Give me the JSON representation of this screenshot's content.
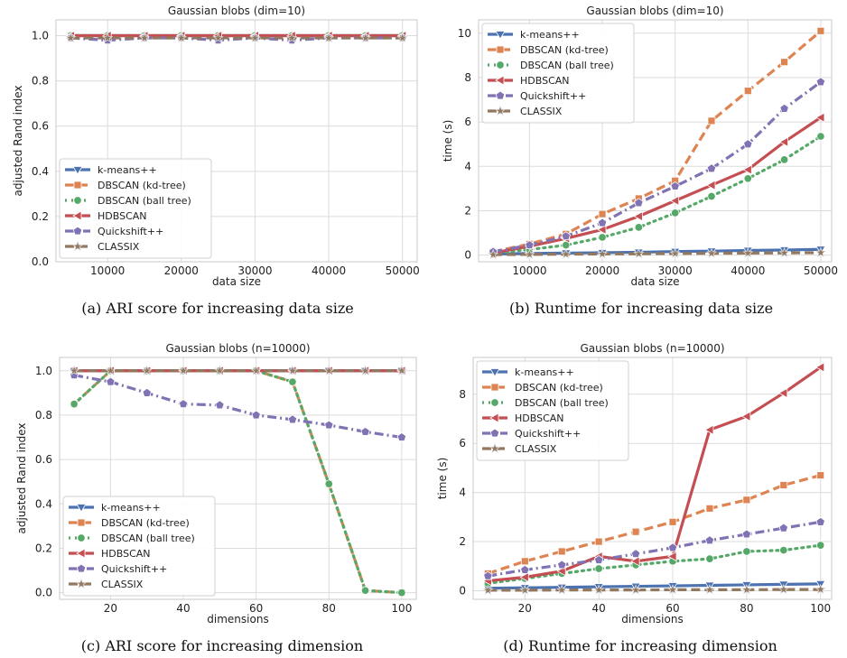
{
  "series_styles": [
    {
      "name": "k-means++",
      "color": "#4c72b0",
      "marker": "triangle-down",
      "dash": "solid"
    },
    {
      "name": "DBSCAN (kd-tree)",
      "color": "#dd8452",
      "marker": "square",
      "dash": "dashed"
    },
    {
      "name": "DBSCAN (ball tree)",
      "color": "#55a868",
      "marker": "circle",
      "dash": "dotted"
    },
    {
      "name": "HDBSCAN",
      "color": "#c44e52",
      "marker": "triangle-left",
      "dash": "solid"
    },
    {
      "name": "Quickshift++",
      "color": "#8172b3",
      "marker": "pentagon",
      "dash": "dashdot"
    },
    {
      "name": "CLASSIX",
      "color": "#937860",
      "marker": "star",
      "dash": "dashed"
    }
  ],
  "captions": [
    "(a)  ARI score for increasing data size",
    "(b)  Runtime for increasing data size",
    "(c)  ARI score for increasing dimension",
    "(d)  Runtime for increasing dimension"
  ],
  "chart_data": [
    {
      "type": "line",
      "title": "Gaussian blobs (dim=10)",
      "xlabel": "data size",
      "ylabel": "adjusted Rand index",
      "xlim": [
        3000,
        52000
      ],
      "ylim": [
        0,
        1.07
      ],
      "xticks": [
        10000,
        20000,
        30000,
        40000,
        50000
      ],
      "yticks": [
        0.0,
        0.2,
        0.4,
        0.6,
        0.8,
        1.0
      ],
      "ytick_labels": [
        "0.0",
        "0.2",
        "0.4",
        "0.6",
        "0.8",
        "1.0"
      ],
      "legend": "lower-left",
      "grid": true,
      "x": [
        5000,
        10000,
        15000,
        20000,
        25000,
        30000,
        35000,
        40000,
        45000,
        50000
      ],
      "series": [
        {
          "name": "k-means++",
          "values": [
            1.0,
            1.0,
            1.0,
            1.0,
            1.0,
            1.0,
            1.0,
            1.0,
            1.0,
            1.0
          ]
        },
        {
          "name": "DBSCAN (kd-tree)",
          "values": [
            1.0,
            1.0,
            1.0,
            1.0,
            1.0,
            1.0,
            1.0,
            1.0,
            1.0,
            1.0
          ]
        },
        {
          "name": "DBSCAN (ball tree)",
          "values": [
            1.0,
            1.0,
            1.0,
            1.0,
            1.0,
            1.0,
            1.0,
            1.0,
            1.0,
            1.0
          ]
        },
        {
          "name": "HDBSCAN",
          "values": [
            1.0,
            1.0,
            1.0,
            1.0,
            1.0,
            1.0,
            1.0,
            1.0,
            1.0,
            1.0
          ]
        },
        {
          "name": "Quickshift++",
          "values": [
            0.99,
            0.98,
            0.99,
            0.99,
            0.98,
            0.99,
            0.98,
            0.99,
            0.99,
            0.99
          ]
        },
        {
          "name": "CLASSIX",
          "values": [
            0.99,
            0.99,
            0.99,
            0.99,
            0.99,
            0.99,
            0.99,
            0.99,
            0.99,
            0.99
          ]
        }
      ]
    },
    {
      "type": "line",
      "title": "Gaussian blobs (dim=10)",
      "xlabel": "data size",
      "ylabel": "time (s)",
      "xlim": [
        3000,
        51500
      ],
      "ylim": [
        -0.3,
        10.6
      ],
      "xticks": [
        10000,
        20000,
        30000,
        40000,
        50000
      ],
      "yticks": [
        0,
        2,
        4,
        6,
        8,
        10
      ],
      "ytick_labels": [
        "0",
        "2",
        "4",
        "6",
        "8",
        "10"
      ],
      "legend": "top-left",
      "grid": true,
      "x": [
        5000,
        10000,
        15000,
        20000,
        25000,
        30000,
        35000,
        40000,
        45000,
        50000
      ],
      "series": [
        {
          "name": "k-means++",
          "values": [
            0.05,
            0.07,
            0.09,
            0.11,
            0.13,
            0.16,
            0.18,
            0.21,
            0.23,
            0.26
          ]
        },
        {
          "name": "DBSCAN (kd-tree)",
          "values": [
            0.15,
            0.5,
            0.95,
            1.85,
            2.55,
            3.35,
            6.05,
            7.4,
            8.7,
            10.1
          ]
        },
        {
          "name": "DBSCAN (ball tree)",
          "values": [
            0.1,
            0.25,
            0.45,
            0.8,
            1.25,
            1.9,
            2.65,
            3.45,
            4.3,
            5.35
          ]
        },
        {
          "name": "HDBSCAN",
          "values": [
            0.1,
            0.4,
            0.75,
            1.15,
            1.75,
            2.45,
            3.15,
            3.85,
            5.1,
            6.2
          ]
        },
        {
          "name": "Quickshift++",
          "values": [
            0.15,
            0.45,
            0.85,
            1.45,
            2.35,
            3.1,
            3.9,
            5.0,
            6.6,
            7.8
          ]
        },
        {
          "name": "CLASSIX",
          "values": [
            0.02,
            0.03,
            0.04,
            0.05,
            0.06,
            0.07,
            0.08,
            0.09,
            0.1,
            0.11
          ]
        }
      ]
    },
    {
      "type": "line",
      "title": "Gaussian blobs (n=10000)",
      "xlabel": "dimensions",
      "ylabel": "adjusted Rand index",
      "xlim": [
        6,
        104
      ],
      "ylim": [
        -0.03,
        1.06
      ],
      "xticks": [
        20,
        40,
        60,
        80,
        100
      ],
      "yticks": [
        0.0,
        0.2,
        0.4,
        0.6,
        0.8,
        1.0
      ],
      "ytick_labels": [
        "0.0",
        "0.2",
        "0.4",
        "0.6",
        "0.8",
        "1.0"
      ],
      "legend": "lower-left",
      "grid": true,
      "x": [
        10,
        20,
        30,
        40,
        50,
        60,
        70,
        80,
        90,
        100
      ],
      "series": [
        {
          "name": "k-means++",
          "values": [
            1.0,
            1.0,
            1.0,
            1.0,
            1.0,
            1.0,
            1.0,
            1.0,
            1.0,
            1.0
          ]
        },
        {
          "name": "DBSCAN (kd-tree)",
          "values": [
            0.85,
            1.0,
            1.0,
            1.0,
            1.0,
            1.0,
            0.95,
            0.49,
            0.01,
            0.0
          ]
        },
        {
          "name": "DBSCAN (ball tree)",
          "values": [
            0.85,
            1.0,
            1.0,
            1.0,
            1.0,
            1.0,
            0.95,
            0.49,
            0.01,
            0.0
          ]
        },
        {
          "name": "HDBSCAN",
          "values": [
            1.0,
            1.0,
            1.0,
            1.0,
            1.0,
            1.0,
            1.0,
            1.0,
            1.0,
            1.0
          ]
        },
        {
          "name": "Quickshift++",
          "values": [
            0.98,
            0.95,
            0.9,
            0.85,
            0.845,
            0.8,
            0.78,
            0.755,
            0.725,
            0.7
          ]
        },
        {
          "name": "CLASSIX",
          "values": [
            1.0,
            1.0,
            1.0,
            1.0,
            1.0,
            1.0,
            1.0,
            1.0,
            1.0,
            1.0
          ]
        }
      ]
    },
    {
      "type": "line",
      "title": "Gaussian blobs (n=10000)",
      "xlabel": "dimensions",
      "ylabel": "time (s)",
      "xlim": [
        6,
        103
      ],
      "ylim": [
        -0.35,
        9.5
      ],
      "xticks": [
        20,
        40,
        60,
        80,
        100
      ],
      "yticks": [
        0,
        2,
        4,
        6,
        8
      ],
      "ytick_labels": [
        "0",
        "2",
        "4",
        "6",
        "8"
      ],
      "legend": "top-left",
      "grid": true,
      "x": [
        10,
        20,
        30,
        40,
        50,
        60,
        70,
        80,
        90,
        100
      ],
      "series": [
        {
          "name": "k-means++",
          "values": [
            0.1,
            0.12,
            0.14,
            0.16,
            0.18,
            0.2,
            0.22,
            0.24,
            0.26,
            0.28
          ]
        },
        {
          "name": "DBSCAN (kd-tree)",
          "values": [
            0.7,
            1.2,
            1.6,
            2.0,
            2.4,
            2.8,
            3.35,
            3.7,
            4.3,
            4.7
          ]
        },
        {
          "name": "DBSCAN (ball tree)",
          "values": [
            0.3,
            0.5,
            0.7,
            0.9,
            1.05,
            1.2,
            1.3,
            1.6,
            1.65,
            1.85
          ]
        },
        {
          "name": "HDBSCAN",
          "values": [
            0.4,
            0.55,
            0.8,
            1.4,
            1.2,
            1.4,
            6.55,
            7.1,
            8.05,
            9.1
          ]
        },
        {
          "name": "Quickshift++",
          "values": [
            0.6,
            0.85,
            1.05,
            1.25,
            1.5,
            1.75,
            2.05,
            2.3,
            2.55,
            2.8
          ]
        },
        {
          "name": "CLASSIX",
          "values": [
            0.02,
            0.02,
            0.03,
            0.03,
            0.03,
            0.04,
            0.04,
            0.04,
            0.05,
            0.05
          ]
        }
      ]
    }
  ]
}
